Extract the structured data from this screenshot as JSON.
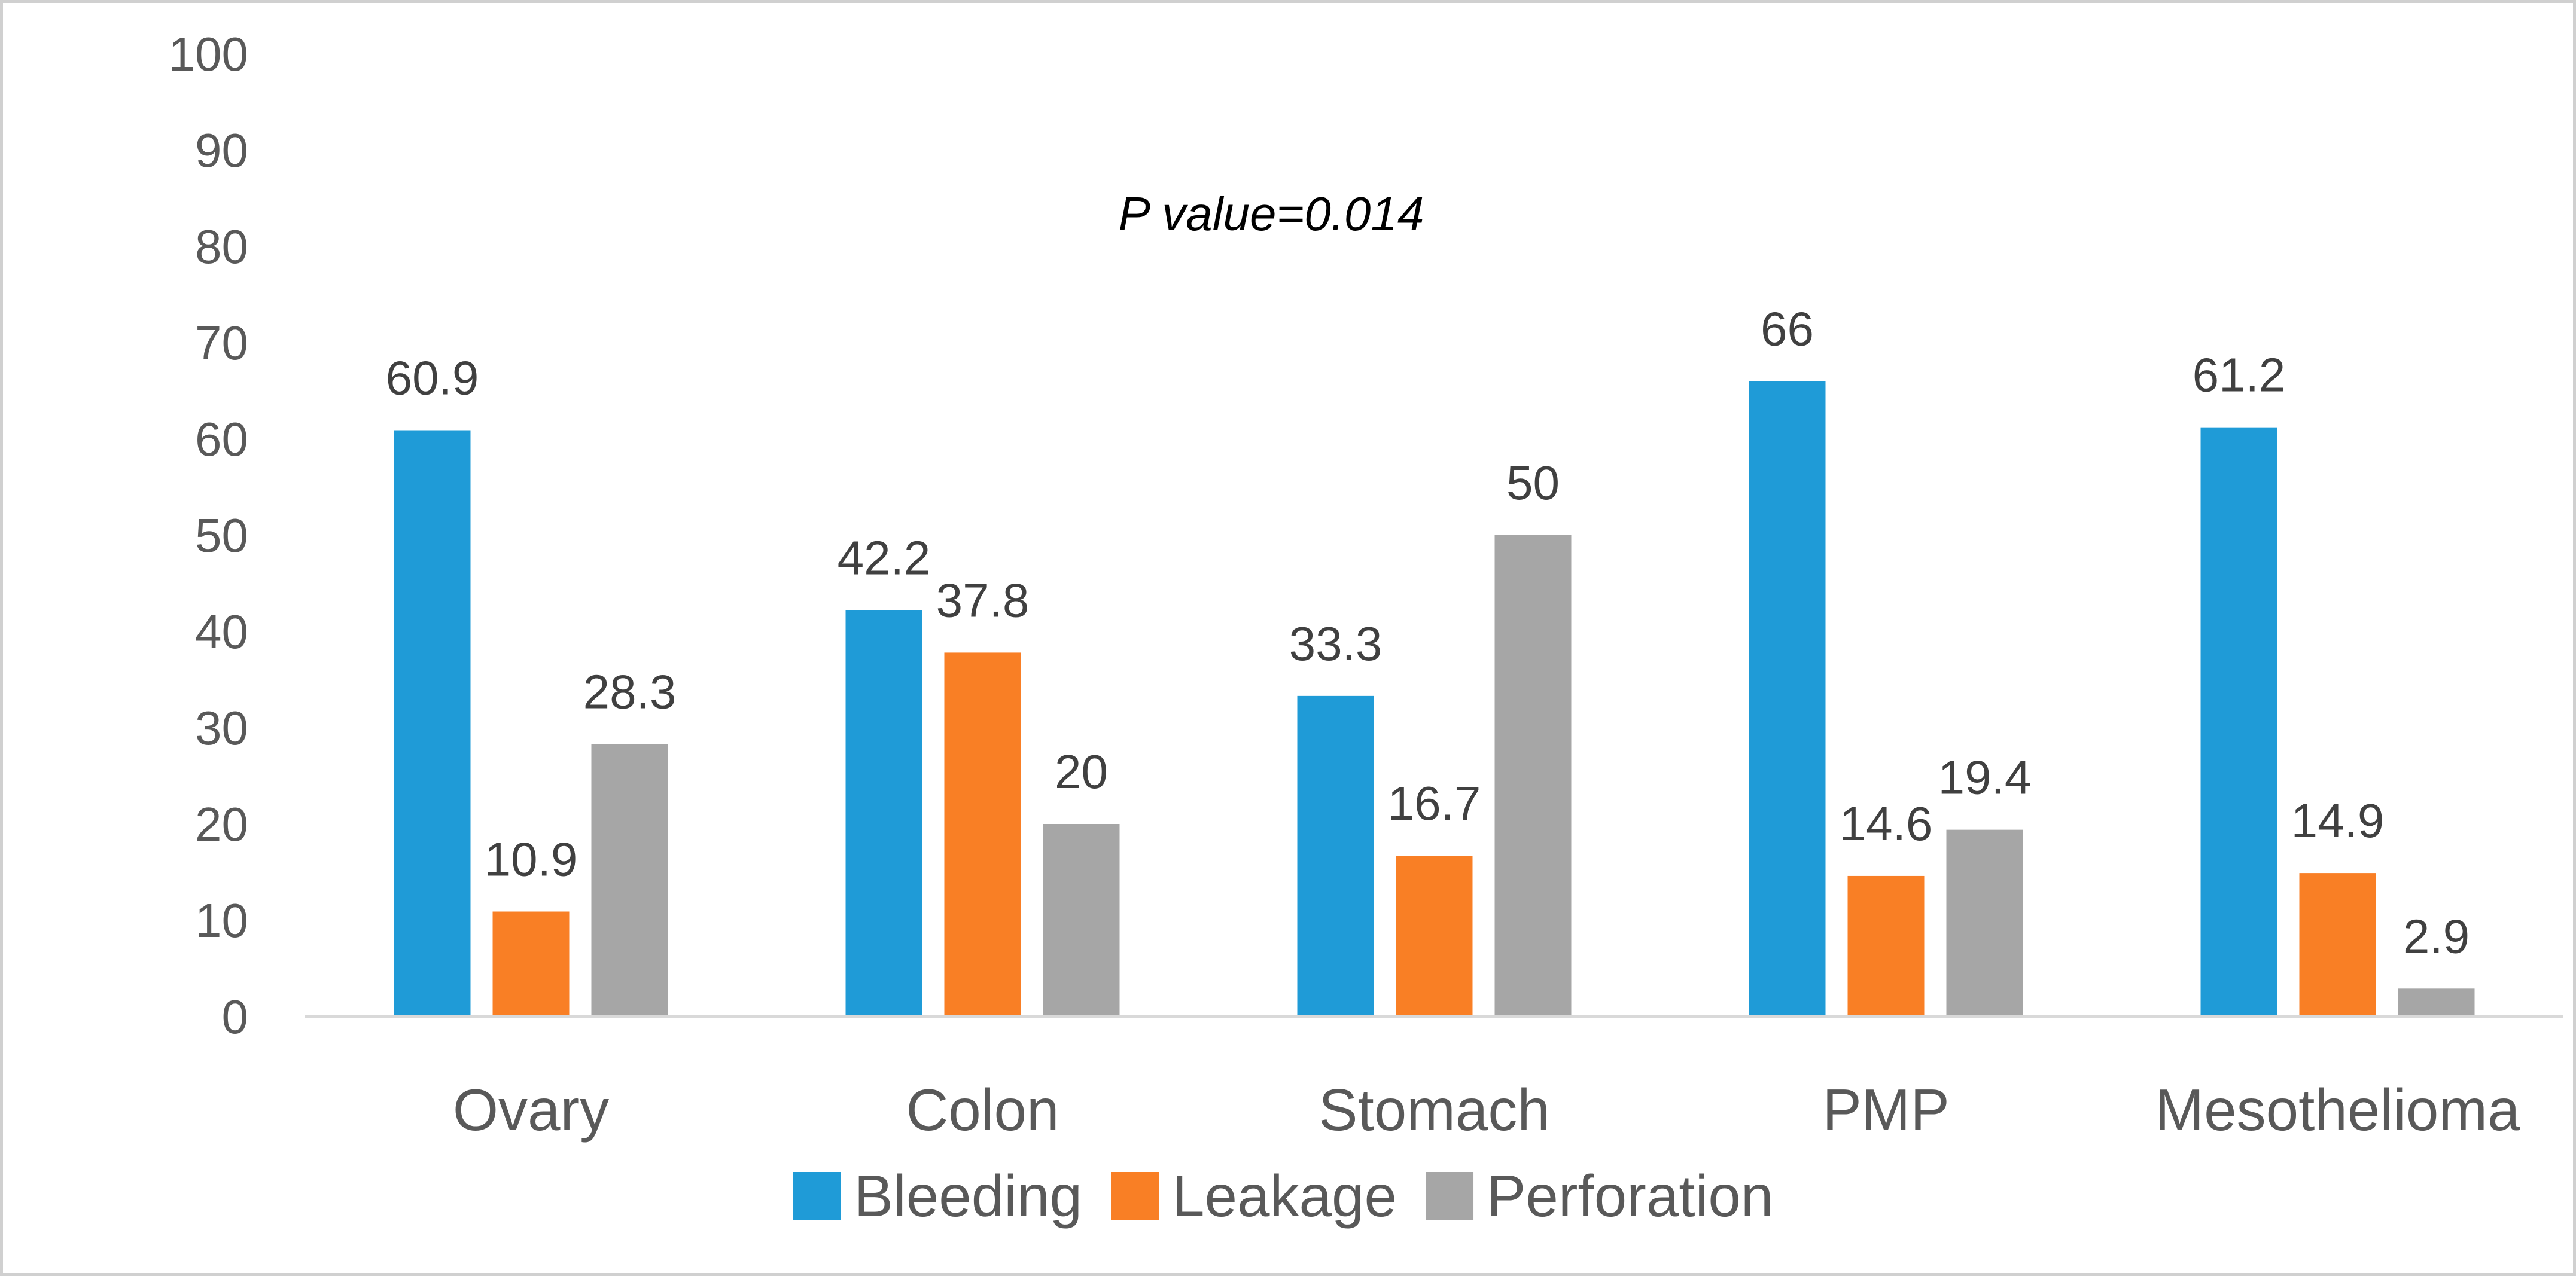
{
  "chart_data": {
    "type": "bar",
    "title": "",
    "xlabel": "",
    "ylabel": "",
    "categories": [
      "Ovary",
      "Colon",
      "Stomach",
      "PMP",
      "Mesothelioma"
    ],
    "series": [
      {
        "name": "Bleeding",
        "color": "#1F9BD7",
        "values": [
          60.9,
          42.2,
          33.3,
          66,
          61.2
        ]
      },
      {
        "name": "Leakage",
        "color": "#F97F25",
        "values": [
          10.9,
          37.8,
          16.7,
          14.6,
          14.9
        ]
      },
      {
        "name": "Perforation",
        "color": "#A6A6A6",
        "values": [
          28.3,
          20,
          50,
          19.4,
          2.9
        ]
      }
    ],
    "ylim": [
      0,
      100
    ],
    "yticks": [
      0,
      10,
      20,
      30,
      40,
      50,
      60,
      70,
      80,
      90,
      100
    ],
    "grid": false,
    "legend_position": "bottom",
    "annotation": "P value=0.014"
  }
}
